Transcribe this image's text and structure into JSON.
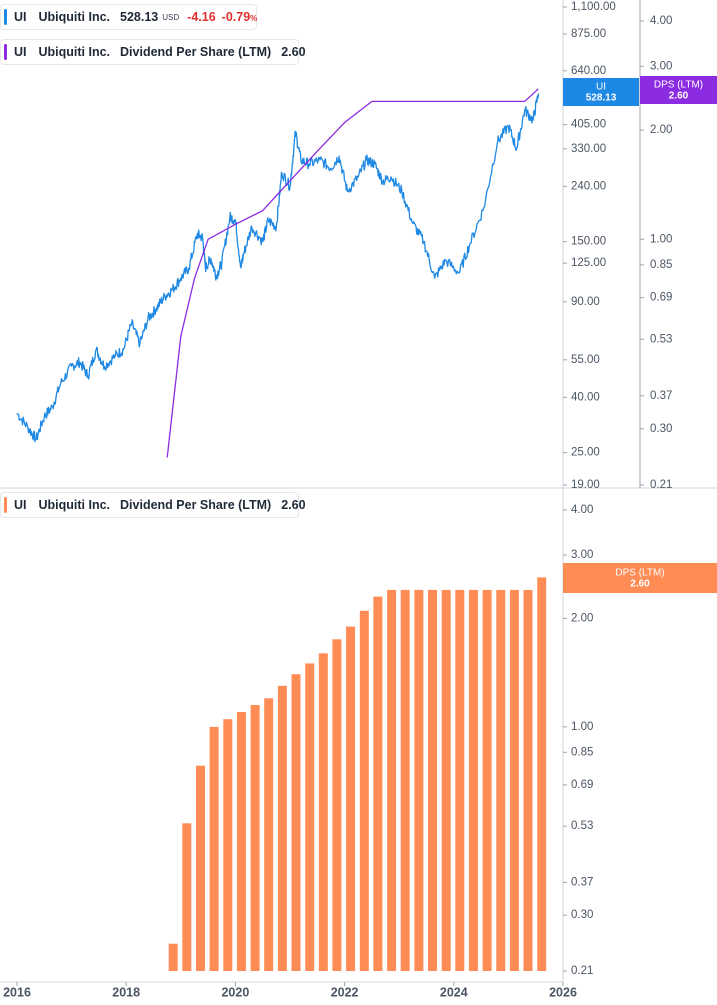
{
  "legend_price": {
    "ticker": "UI",
    "name": "Ubiquiti Inc.",
    "price": "528.13",
    "currency": "USD",
    "change": "-4.16",
    "change_pct": "-0.79",
    "pct_sign": "%"
  },
  "legend_dps_top": {
    "ticker": "UI",
    "name": "Ubiquiti Inc.",
    "metric": "Dividend Per Share (LTM)",
    "value": "2.60"
  },
  "legend_dps_bottom": {
    "ticker": "UI",
    "name": "Ubiquiti Inc.",
    "metric": "Dividend Per Share (LTM)",
    "value": "2.60"
  },
  "colors": {
    "price": "#1e88e5",
    "dps_line": "#8b2be2",
    "dps_bar": "#ff8c55",
    "neg": "#e0302d",
    "axis_text": "#4b5563"
  },
  "chart_data": [
    {
      "type": "line",
      "title": "",
      "scale": "log",
      "x_labels": [
        "2016",
        "2018",
        "2020",
        "2022",
        "2024",
        "2026"
      ],
      "y_ticks_price": [
        "1,100.00",
        "875.00",
        "640.00",
        "405.00",
        "330.00",
        "240.00",
        "150.00",
        "125.00",
        "90.00",
        "55.00",
        "40.00",
        "25.00",
        "19.00"
      ],
      "y_ticks_dps": [
        "4.00",
        "3.00",
        "2.00",
        "1.00",
        "0.85",
        "0.69",
        "0.53",
        "0.37",
        "0.30",
        "0.21"
      ],
      "price_ylim": [
        19,
        1100
      ],
      "dps_ylim": [
        0.21,
        4.0
      ],
      "series": [
        {
          "name": "UI",
          "axis": "left",
          "last_label": "UI",
          "last_value": "528.13",
          "points": [
            [
              2016.0,
              35
            ],
            [
              2016.2,
              31
            ],
            [
              2016.35,
              28
            ],
            [
              2016.5,
              34
            ],
            [
              2016.65,
              37
            ],
            [
              2016.8,
              45
            ],
            [
              2017.0,
              52
            ],
            [
              2017.15,
              54
            ],
            [
              2017.3,
              48
            ],
            [
              2017.45,
              60
            ],
            [
              2017.6,
              52
            ],
            [
              2017.8,
              57
            ],
            [
              2017.95,
              60
            ],
            [
              2018.1,
              75
            ],
            [
              2018.25,
              63
            ],
            [
              2018.4,
              78
            ],
            [
              2018.55,
              85
            ],
            [
              2018.7,
              94
            ],
            [
              2018.85,
              100
            ],
            [
              2019.0,
              110
            ],
            [
              2019.15,
              120
            ],
            [
              2019.3,
              160
            ],
            [
              2019.4,
              155
            ],
            [
              2019.45,
              120
            ],
            [
              2019.55,
              130
            ],
            [
              2019.65,
              112
            ],
            [
              2019.75,
              125
            ],
            [
              2019.9,
              185
            ],
            [
              2020.0,
              180
            ],
            [
              2020.1,
              120
            ],
            [
              2020.15,
              135
            ],
            [
              2020.3,
              170
            ],
            [
              2020.5,
              150
            ],
            [
              2020.6,
              180
            ],
            [
              2020.75,
              170
            ],
            [
              2020.85,
              270
            ],
            [
              2021.0,
              240
            ],
            [
              2021.1,
              380
            ],
            [
              2021.2,
              300
            ],
            [
              2021.35,
              290
            ],
            [
              2021.55,
              300
            ],
            [
              2021.75,
              280
            ],
            [
              2021.9,
              310
            ],
            [
              2022.05,
              230
            ],
            [
              2022.25,
              260
            ],
            [
              2022.4,
              300
            ],
            [
              2022.55,
              290
            ],
            [
              2022.7,
              250
            ],
            [
              2022.85,
              260
            ],
            [
              2023.05,
              230
            ],
            [
              2023.25,
              175
            ],
            [
              2023.45,
              150
            ],
            [
              2023.65,
              110
            ],
            [
              2023.85,
              128
            ],
            [
              2024.1,
              115
            ],
            [
              2024.3,
              148
            ],
            [
              2024.55,
              200
            ],
            [
              2024.8,
              350
            ],
            [
              2025.0,
              400
            ],
            [
              2025.15,
              330
            ],
            [
              2025.3,
              460
            ],
            [
              2025.45,
              420
            ],
            [
              2025.55,
              528.13
            ]
          ]
        },
        {
          "name": "DPS (LTM)",
          "axis": "right",
          "last_label": "DPS (LTM)",
          "last_value": "2.60",
          "points": [
            [
              2018.75,
              0.25
            ],
            [
              2019.0,
              0.54
            ],
            [
              2019.25,
              0.78
            ],
            [
              2019.5,
              1.0
            ],
            [
              2020.0,
              1.1
            ],
            [
              2020.5,
              1.2
            ],
            [
              2021.0,
              1.45
            ],
            [
              2021.5,
              1.75
            ],
            [
              2022.0,
              2.1
            ],
            [
              2022.5,
              2.4
            ],
            [
              2025.3,
              2.4
            ],
            [
              2025.55,
              2.6
            ]
          ]
        }
      ]
    },
    {
      "type": "bar",
      "title": "",
      "scale": "log",
      "x_labels": [
        "2016",
        "2018",
        "2020",
        "2022",
        "2024",
        "2026"
      ],
      "y_ticks": [
        "4.00",
        "3.00",
        "2.00",
        "1.00",
        "0.85",
        "0.69",
        "0.53",
        "0.37",
        "0.30",
        "0.21"
      ],
      "ylim": [
        0.21,
        4.0
      ],
      "series": [
        {
          "name": "DPS (LTM)",
          "last_label": "DPS (LTM)",
          "last_value": "2.60",
          "x": [
            2018.75,
            2019.0,
            2019.25,
            2019.5,
            2019.75,
            2020.0,
            2020.25,
            2020.5,
            2020.75,
            2021.0,
            2021.25,
            2021.5,
            2021.75,
            2022.0,
            2022.25,
            2022.5,
            2022.75,
            2023.0,
            2023.25,
            2023.5,
            2023.75,
            2024.0,
            2024.25,
            2024.5,
            2024.75,
            2025.0,
            2025.25,
            2025.5
          ],
          "values": [
            0.25,
            0.54,
            0.78,
            1.0,
            1.05,
            1.1,
            1.15,
            1.2,
            1.3,
            1.4,
            1.5,
            1.6,
            1.75,
            1.9,
            2.1,
            2.3,
            2.4,
            2.4,
            2.4,
            2.4,
            2.4,
            2.4,
            2.4,
            2.4,
            2.4,
            2.4,
            2.4,
            2.6
          ]
        }
      ]
    }
  ]
}
